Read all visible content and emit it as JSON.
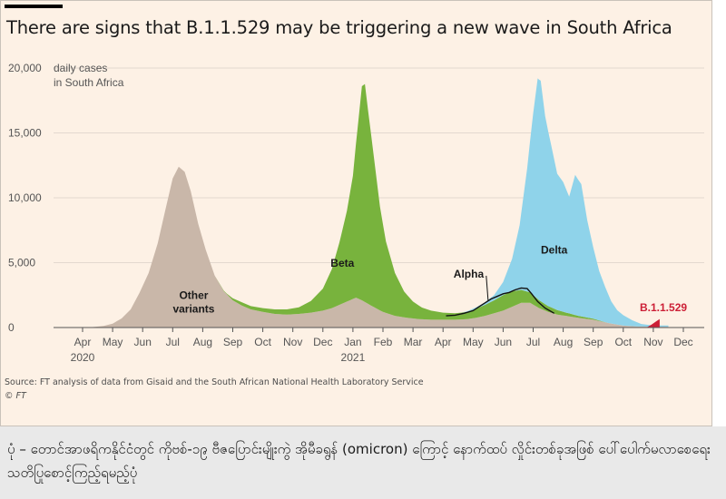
{
  "caption": "ပုံ – တောင်အာဖရိကနိုင်ငံတွင် ကိုဗစ်-၁၉ ဗီဇပြောင်းမျိုးကွဲ အိုမီခရွန် (omicron) ကြောင့် နောက်ထပ် လှိုင်းတစ်ခုအဖြစ် ပေါ်ပေါက်မလာစေရေး သတိပြုစောင့်ကြည့်ရမည့်ပုံ",
  "colors": {
    "other": "#c9b7a9",
    "beta": "#78b33d",
    "delta": "#8fd3ea",
    "alpha_line": "#111111",
    "omicron": "#cc1f36",
    "background": "#fdf1e5"
  },
  "chart_data": {
    "type": "area",
    "title": "There are signs that B.1.1.529 may be triggering a new wave in South Africa",
    "ylabel_lines": [
      "daily cases",
      "in South Africa"
    ],
    "source": "Source: FT analysis of data from Gisaid and the South African National Health Laboratory Service",
    "credit": "© FT",
    "ylim": [
      0,
      20000
    ],
    "yticks": [
      "0",
      "5,000",
      "10,000",
      "15,000",
      "20,000"
    ],
    "ytick_values": [
      0,
      5000,
      10000,
      15000,
      20000
    ],
    "xticks": [
      "Apr",
      "May",
      "Jun",
      "Jul",
      "Aug",
      "Sep",
      "Oct",
      "Nov",
      "Dec",
      "Jan",
      "Feb",
      "Mar",
      "Apr",
      "May",
      "Jun",
      "Jul",
      "Aug",
      "Sep",
      "Oct",
      "Nov",
      "Dec"
    ],
    "year_labels": [
      {
        "label": "2020",
        "month_index": 0
      },
      {
        "label": "2021",
        "month_index": 9
      }
    ],
    "x_unit": "months since Apr 2020",
    "grid": true,
    "stack_order": [
      "other",
      "beta",
      "delta"
    ],
    "series": {
      "other": {
        "name": "Other variants",
        "label_lines": [
          "Other",
          "variants"
        ],
        "label_pos": [
          3.7,
          2200
        ],
        "points": [
          [
            0.0,
            0
          ],
          [
            0.3,
            30
          ],
          [
            0.7,
            120
          ],
          [
            1.0,
            300
          ],
          [
            1.3,
            700
          ],
          [
            1.6,
            1400
          ],
          [
            1.9,
            2700
          ],
          [
            2.2,
            4200
          ],
          [
            2.5,
            6500
          ],
          [
            2.75,
            9000
          ],
          [
            3.0,
            11500
          ],
          [
            3.2,
            12400
          ],
          [
            3.4,
            12000
          ],
          [
            3.6,
            10500
          ],
          [
            3.85,
            8000
          ],
          [
            4.1,
            6000
          ],
          [
            4.4,
            4000
          ],
          [
            4.7,
            2800
          ],
          [
            5.0,
            2100
          ],
          [
            5.3,
            1700
          ],
          [
            5.6,
            1400
          ],
          [
            6.0,
            1200
          ],
          [
            6.4,
            1050
          ],
          [
            6.8,
            1000
          ],
          [
            7.2,
            1050
          ],
          [
            7.6,
            1150
          ],
          [
            8.0,
            1300
          ],
          [
            8.3,
            1500
          ],
          [
            8.6,
            1800
          ],
          [
            8.9,
            2100
          ],
          [
            9.1,
            2300
          ],
          [
            9.3,
            2100
          ],
          [
            9.6,
            1700
          ],
          [
            10.0,
            1200
          ],
          [
            10.4,
            900
          ],
          [
            10.8,
            750
          ],
          [
            11.2,
            650
          ],
          [
            11.6,
            600
          ],
          [
            12.0,
            600
          ],
          [
            12.4,
            600
          ],
          [
            12.8,
            650
          ],
          [
            13.1,
            750
          ],
          [
            13.4,
            900
          ],
          [
            13.7,
            1100
          ],
          [
            14.0,
            1300
          ],
          [
            14.3,
            1600
          ],
          [
            14.6,
            1900
          ],
          [
            14.9,
            1900
          ],
          [
            15.2,
            1500
          ],
          [
            15.5,
            1200
          ],
          [
            15.8,
            1000
          ],
          [
            16.1,
            900
          ],
          [
            16.5,
            750
          ],
          [
            17.0,
            600
          ],
          [
            17.5,
            350
          ],
          [
            18.0,
            150
          ],
          [
            18.5,
            80
          ],
          [
            19.0,
            60
          ],
          [
            19.5,
            60
          ]
        ]
      },
      "beta": {
        "name": "Beta",
        "label_pos": [
          8.65,
          4700
        ],
        "points": [
          [
            0.0,
            0
          ],
          [
            4.4,
            0
          ],
          [
            4.8,
            50
          ],
          [
            5.0,
            150
          ],
          [
            5.3,
            250
          ],
          [
            5.6,
            250
          ],
          [
            6.0,
            300
          ],
          [
            6.4,
            350
          ],
          [
            6.8,
            400
          ],
          [
            7.2,
            500
          ],
          [
            7.6,
            900
          ],
          [
            8.0,
            1700
          ],
          [
            8.3,
            3000
          ],
          [
            8.55,
            4800
          ],
          [
            8.8,
            7000
          ],
          [
            9.0,
            9500
          ],
          [
            9.15,
            13000
          ],
          [
            9.3,
            16500
          ],
          [
            9.4,
            16800
          ],
          [
            9.5,
            15000
          ],
          [
            9.7,
            11500
          ],
          [
            9.9,
            8000
          ],
          [
            10.1,
            5500
          ],
          [
            10.4,
            3300
          ],
          [
            10.7,
            2000
          ],
          [
            11.0,
            1300
          ],
          [
            11.3,
            900
          ],
          [
            11.6,
            700
          ],
          [
            12.0,
            550
          ],
          [
            12.4,
            500
          ],
          [
            12.8,
            550
          ],
          [
            13.1,
            700
          ],
          [
            13.4,
            850
          ],
          [
            13.7,
            1000
          ],
          [
            14.0,
            1200
          ],
          [
            14.3,
            1200
          ],
          [
            14.6,
            1000
          ],
          [
            14.9,
            800
          ],
          [
            15.2,
            600
          ],
          [
            15.5,
            450
          ],
          [
            15.8,
            350
          ],
          [
            16.1,
            250
          ],
          [
            16.5,
            150
          ],
          [
            17.0,
            80
          ],
          [
            17.5,
            0
          ],
          [
            19.5,
            0
          ]
        ]
      },
      "delta": {
        "name": "Delta",
        "label_pos": [
          15.7,
          5700
        ],
        "points": [
          [
            0.0,
            0
          ],
          [
            12.6,
            0
          ],
          [
            12.8,
            50
          ],
          [
            13.1,
            100
          ],
          [
            13.4,
            200
          ],
          [
            13.7,
            400
          ],
          [
            14.0,
            1000
          ],
          [
            14.3,
            2500
          ],
          [
            14.55,
            5000
          ],
          [
            14.8,
            9500
          ],
          [
            15.0,
            14000
          ],
          [
            15.15,
            17000
          ],
          [
            15.25,
            17000
          ],
          [
            15.4,
            14500
          ],
          [
            15.6,
            12500
          ],
          [
            15.8,
            10500
          ],
          [
            16.0,
            10000
          ],
          [
            16.2,
            9000
          ],
          [
            16.4,
            10800
          ],
          [
            16.6,
            10200
          ],
          [
            16.8,
            7500
          ],
          [
            17.0,
            5500
          ],
          [
            17.2,
            3800
          ],
          [
            17.4,
            2700
          ],
          [
            17.6,
            1700
          ],
          [
            17.8,
            1100
          ],
          [
            18.0,
            800
          ],
          [
            18.3,
            450
          ],
          [
            18.6,
            200
          ],
          [
            19.0,
            100
          ],
          [
            19.3,
            100
          ],
          [
            19.5,
            100
          ]
        ]
      },
      "alpha": {
        "name": "Alpha",
        "label_pos": [
          12.35,
          3850
        ],
        "points": [
          [
            12.1,
            900
          ],
          [
            12.4,
            950
          ],
          [
            12.7,
            1100
          ],
          [
            13.0,
            1300
          ],
          [
            13.2,
            1600
          ],
          [
            13.4,
            1900
          ],
          [
            13.6,
            2200
          ],
          [
            13.8,
            2400
          ],
          [
            14.0,
            2600
          ],
          [
            14.2,
            2700
          ],
          [
            14.4,
            2900
          ],
          [
            14.6,
            3050
          ],
          [
            14.8,
            3000
          ],
          [
            14.95,
            2600
          ],
          [
            15.15,
            2000
          ],
          [
            15.4,
            1500
          ],
          [
            15.7,
            1100
          ]
        ]
      },
      "omicron": {
        "name": "B.1.1.529",
        "label_pos": [
          18.55,
          1250
        ],
        "points": [
          [
            18.6,
            0
          ],
          [
            18.8,
            0
          ],
          [
            18.95,
            200
          ],
          [
            19.1,
            450
          ],
          [
            19.2,
            600
          ],
          [
            19.2,
            0
          ]
        ]
      }
    }
  }
}
